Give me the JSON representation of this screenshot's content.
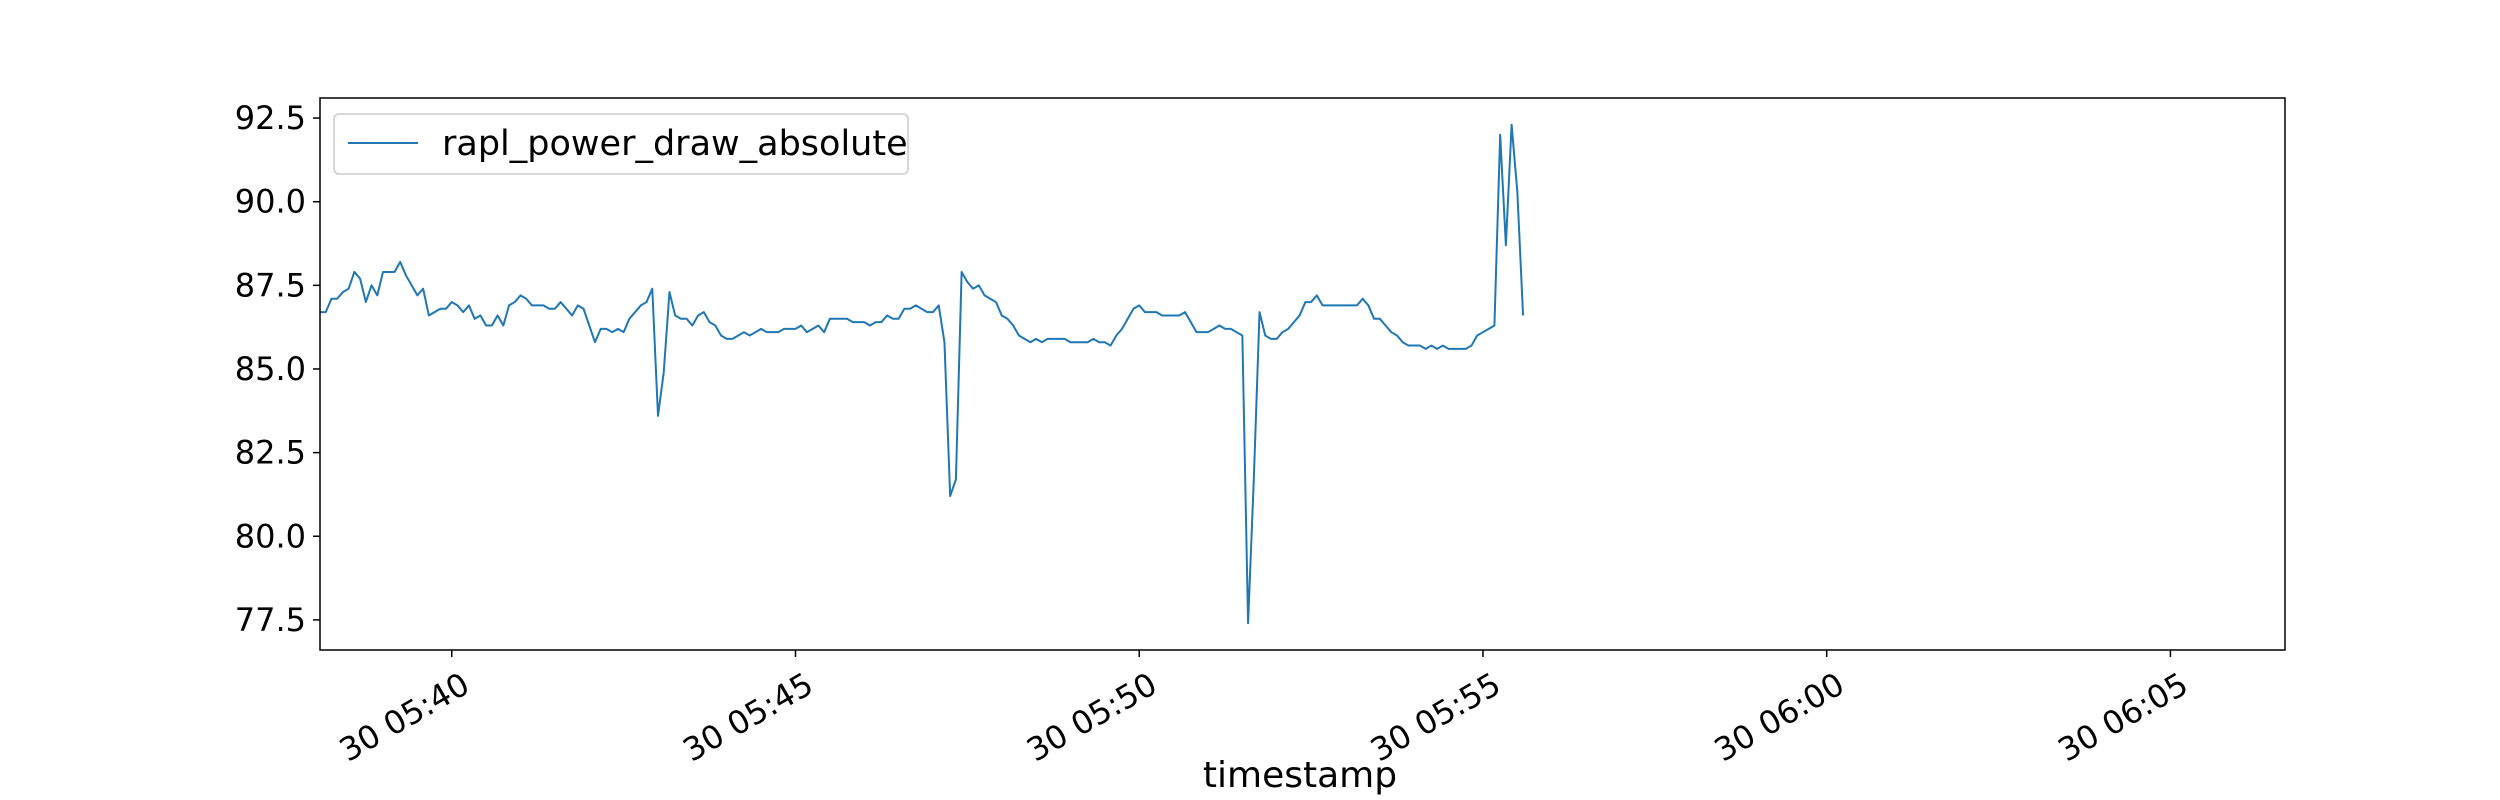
{
  "chart_data": {
    "type": "line",
    "title": "",
    "xlabel": "timestamp",
    "ylabel": "",
    "xlim": [
      "30 05:38:05",
      "30 06:06:40"
    ],
    "ylim": [
      76.6,
      93.1
    ],
    "grid": false,
    "legend": {
      "placement": "upper-left",
      "entries": [
        "rapl_power_draw_absolute"
      ]
    },
    "y_ticks": [
      77.5,
      80.0,
      82.5,
      85.0,
      87.5,
      90.0,
      92.5
    ],
    "y_tick_labels": [
      "77.5",
      "80.0",
      "82.5",
      "85.0",
      "87.5",
      "90.0",
      "92.5"
    ],
    "x_ticks": [
      "30 05:40",
      "30 05:45",
      "30 05:50",
      "30 05:55",
      "30 06:00",
      "30 06:05"
    ],
    "series": [
      {
        "name": "rapl_power_draw_absolute",
        "color": "#1f77b4",
        "x_start": "30 05:38:05",
        "interval_seconds": 5,
        "values": [
          86.7,
          86.7,
          87.1,
          87.1,
          87.3,
          87.4,
          87.9,
          87.7,
          87.0,
          87.5,
          87.2,
          87.9,
          87.9,
          87.9,
          88.2,
          87.8,
          87.5,
          87.2,
          87.4,
          86.6,
          86.7,
          86.8,
          86.8,
          87.0,
          86.9,
          86.7,
          86.9,
          86.5,
          86.6,
          86.3,
          86.3,
          86.6,
          86.3,
          86.9,
          87.0,
          87.2,
          87.1,
          86.9,
          86.9,
          86.9,
          86.8,
          86.8,
          87.0,
          86.8,
          86.6,
          86.9,
          86.8,
          86.3,
          85.8,
          86.2,
          86.2,
          86.1,
          86.2,
          86.1,
          86.5,
          86.7,
          86.9,
          87.0,
          87.4,
          83.6,
          84.9,
          87.3,
          86.6,
          86.5,
          86.5,
          86.3,
          86.6,
          86.7,
          86.4,
          86.3,
          86.0,
          85.9,
          85.9,
          86.0,
          86.1,
          86.0,
          86.1,
          86.2,
          86.1,
          86.1,
          86.1,
          86.2,
          86.2,
          86.2,
          86.3,
          86.1,
          86.2,
          86.3,
          86.1,
          86.5,
          86.5,
          86.5,
          86.5,
          86.4,
          86.4,
          86.4,
          86.3,
          86.4,
          86.4,
          86.6,
          86.5,
          86.5,
          86.8,
          86.8,
          86.9,
          86.8,
          86.7,
          86.7,
          86.9,
          85.8,
          81.2,
          81.7,
          87.9,
          87.6,
          87.4,
          87.5,
          87.2,
          87.1,
          87.0,
          86.6,
          86.5,
          86.3,
          86.0,
          85.9,
          85.8,
          85.9,
          85.8,
          85.9,
          85.9,
          85.9,
          85.9,
          85.8,
          85.8,
          85.8,
          85.8,
          85.9,
          85.8,
          85.8,
          85.7,
          86.0,
          86.2,
          86.5,
          86.8,
          86.9,
          86.7,
          86.7,
          86.7,
          86.6,
          86.6,
          86.6,
          86.6,
          86.7,
          86.4,
          86.1,
          86.1,
          86.1,
          86.2,
          86.3,
          86.2,
          86.2,
          86.1,
          86.0,
          77.4,
          81.7,
          86.7,
          86.0,
          85.9,
          85.9,
          86.1,
          86.2,
          86.4,
          86.6,
          87.0,
          87.0,
          87.2,
          86.9,
          86.9,
          86.9,
          86.9,
          86.9,
          86.9,
          86.9,
          87.1,
          86.9,
          86.5,
          86.5,
          86.3,
          86.1,
          86.0,
          85.8,
          85.7,
          85.7,
          85.7,
          85.6,
          85.7,
          85.6,
          85.7,
          85.6,
          85.6,
          85.6,
          85.6,
          85.7,
          86.0,
          86.1,
          86.2,
          86.3,
          92.0,
          88.7,
          92.3,
          90.3,
          86.6
        ]
      }
    ]
  }
}
